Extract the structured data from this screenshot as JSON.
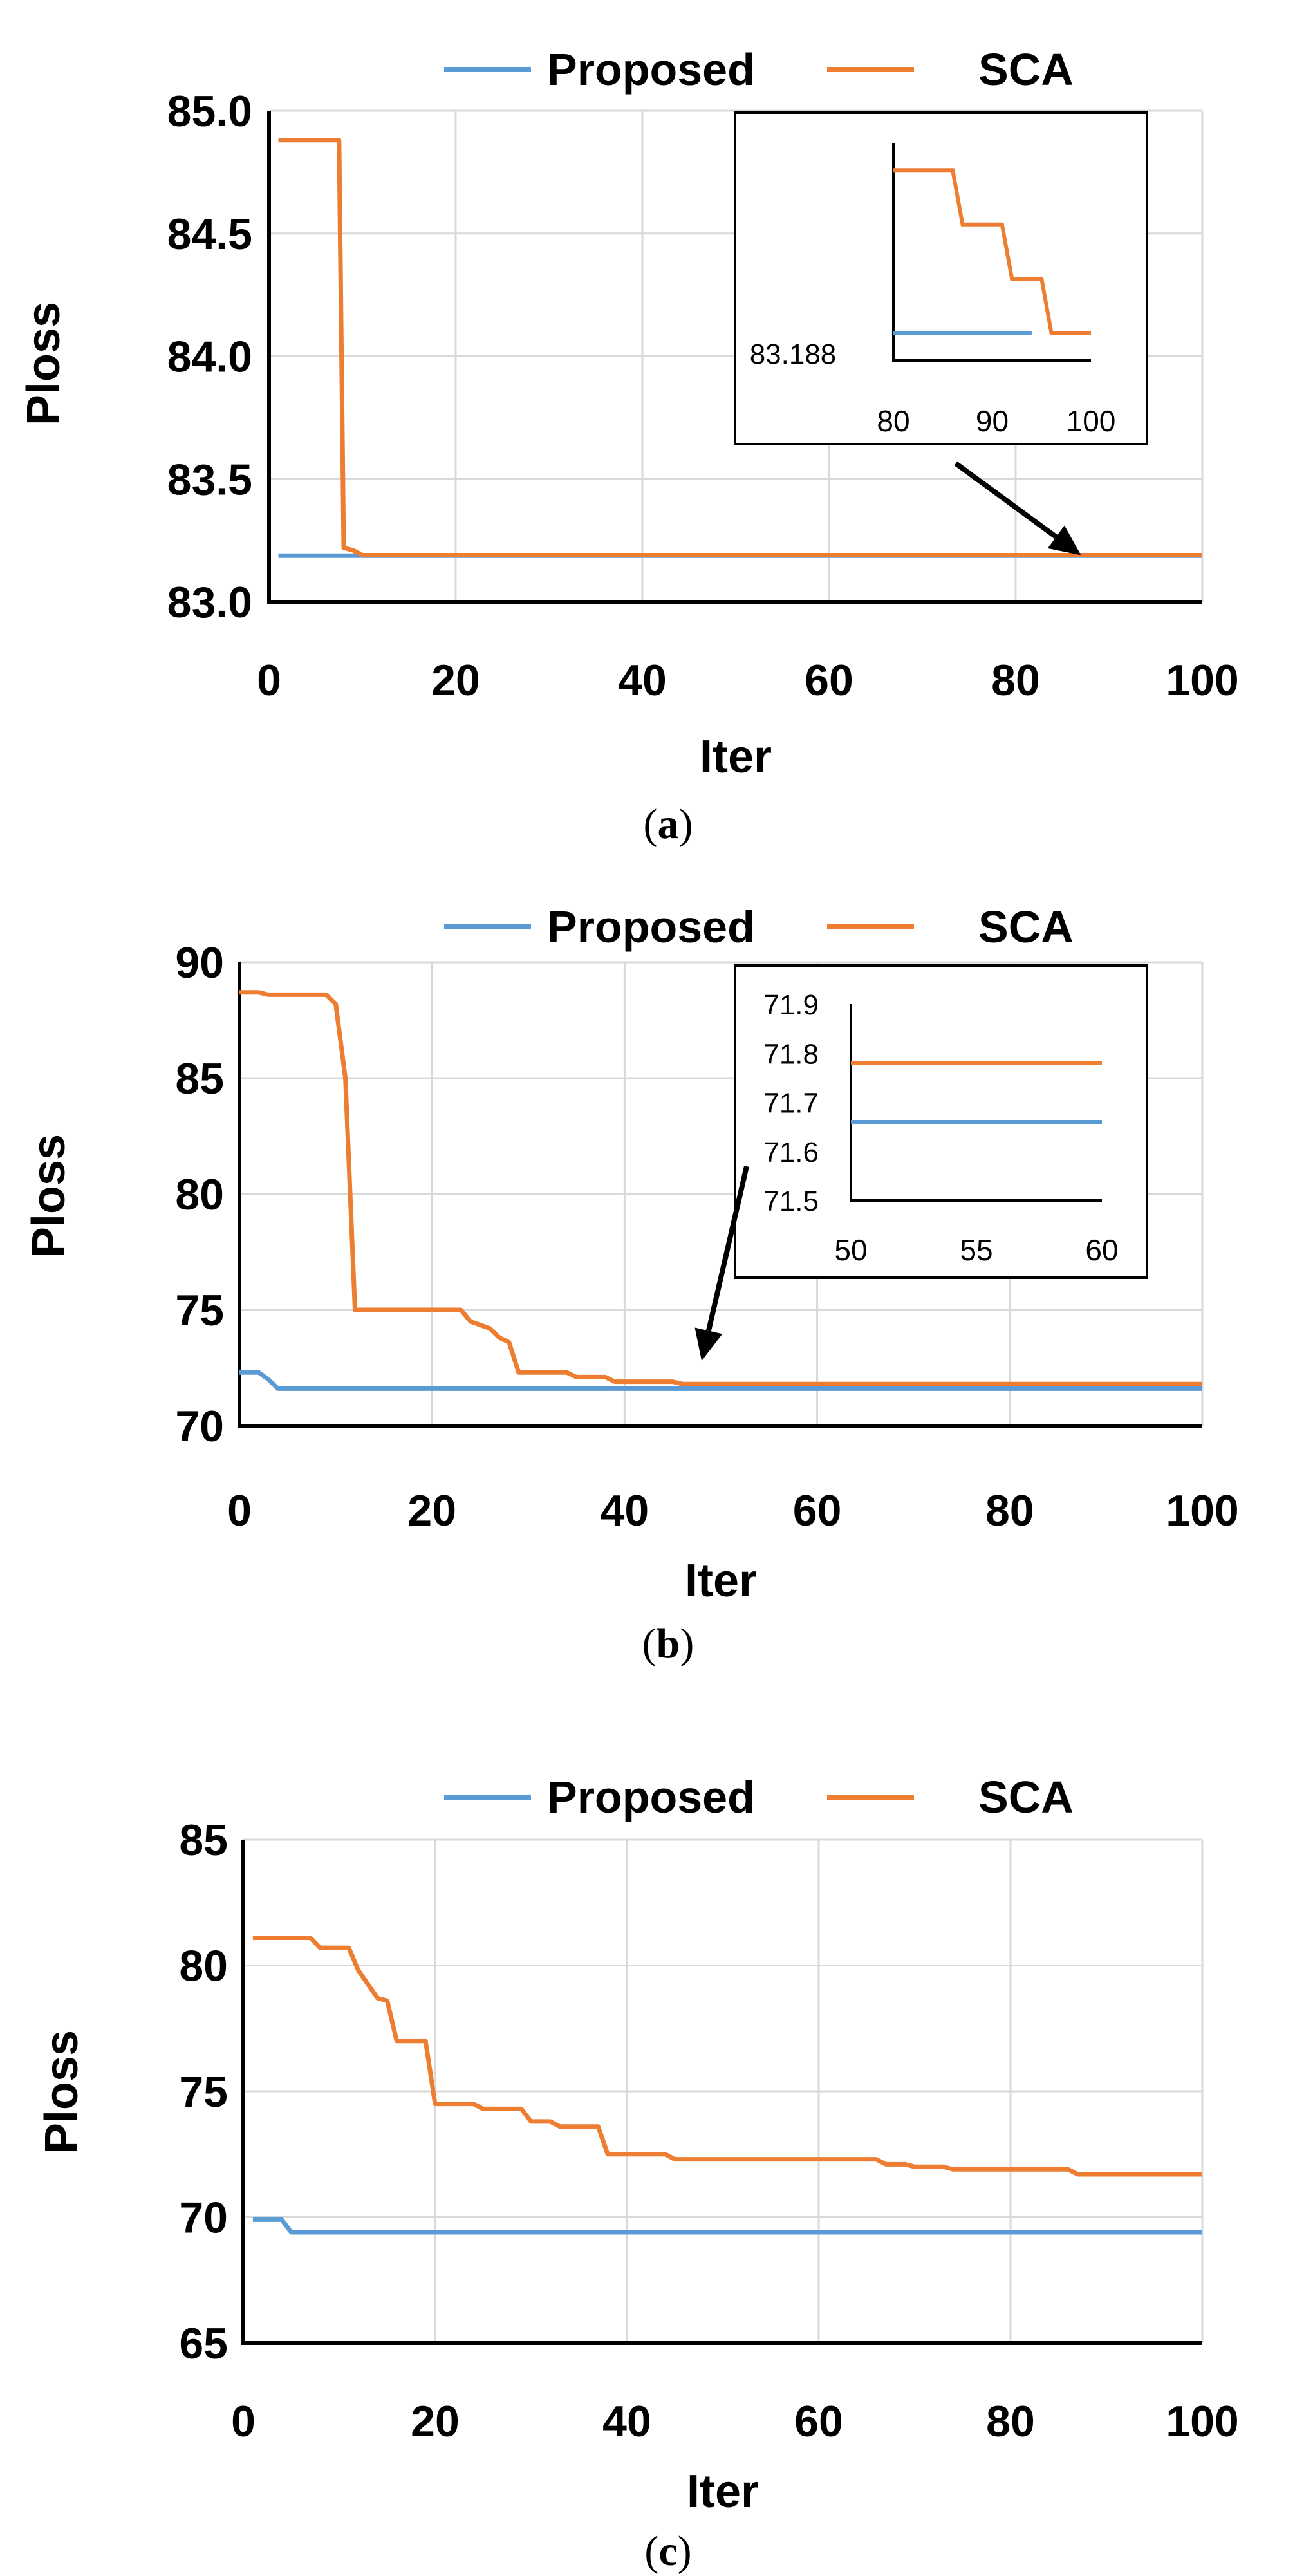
{
  "colors": {
    "proposed": "#5b9bd5",
    "sca": "#ed7d31",
    "grid": "#d9d9d9",
    "axis": "#000000"
  },
  "panels": [
    {
      "caption_letter": "a"
    },
    {
      "caption_letter": "b"
    },
    {
      "caption_letter": "c"
    }
  ],
  "chart_data": [
    {
      "type": "line",
      "title": "",
      "xlabel": "Iter",
      "ylabel": "Ploss",
      "xlim": [
        0,
        100
      ],
      "ylim": [
        83.0,
        85.0
      ],
      "xticks": [
        0,
        20,
        40,
        60,
        80,
        100
      ],
      "xtick_labels": [
        "0",
        "20",
        "40",
        "60",
        "80",
        "100"
      ],
      "yticks": [
        83.0,
        83.5,
        84.0,
        84.5,
        85.0
      ],
      "ytick_labels": [
        "83.0",
        "83.5",
        "84.0",
        "84.5",
        "85.0"
      ],
      "legend": {
        "position": "top",
        "entries": [
          "Proposed",
          "SCA"
        ]
      },
      "series": [
        {
          "name": "Proposed",
          "x": [
            1,
            100
          ],
          "y": [
            83.188,
            83.188
          ]
        },
        {
          "name": "SCA",
          "x": [
            1,
            7.5,
            8,
            9,
            10,
            100
          ],
          "y": [
            84.88,
            84.88,
            83.22,
            83.21,
            83.19,
            83.19
          ]
        }
      ],
      "inset": {
        "xlim": [
          80,
          100
        ],
        "xticks": [
          80,
          90,
          100
        ],
        "xtick_labels": [
          "80",
          "90",
          "100"
        ],
        "ytick_label": "83.188",
        "series": [
          {
            "name": "Proposed",
            "x": [
              80,
              94
            ],
            "y": [
              83.188,
              83.188
            ]
          },
          {
            "name": "SCA",
            "x": [
              80,
              86,
              87,
              91,
              92,
              95,
              96,
              100
            ],
            "y": [
              83.2,
              83.2,
              83.196,
              83.196,
              83.192,
              83.192,
              83.188,
              83.188
            ]
          }
        ],
        "arrow_target": {
          "x": 87,
          "y": 83.19
        }
      }
    },
    {
      "type": "line",
      "title": "",
      "xlabel": "Iter",
      "ylabel": "Ploss",
      "xlim": [
        0,
        100
      ],
      "ylim": [
        70,
        90
      ],
      "xticks": [
        0,
        20,
        40,
        60,
        80,
        100
      ],
      "xtick_labels": [
        "0",
        "20",
        "40",
        "60",
        "80",
        "100"
      ],
      "yticks": [
        70,
        75,
        80,
        85,
        90
      ],
      "ytick_labels": [
        "70",
        "75",
        "80",
        "85",
        "90"
      ],
      "legend": {
        "position": "top",
        "entries": [
          "Proposed",
          "SCA"
        ]
      },
      "series": [
        {
          "name": "Proposed",
          "x": [
            0,
            2,
            3,
            4,
            100
          ],
          "y": [
            72.3,
            72.3,
            72.0,
            71.6,
            71.6
          ]
        },
        {
          "name": "SCA",
          "x": [
            0,
            2,
            3,
            9,
            10,
            11,
            12,
            23,
            24,
            26,
            27,
            28,
            29,
            34,
            35,
            38,
            39,
            45,
            46,
            100
          ],
          "y": [
            88.7,
            88.7,
            88.6,
            88.6,
            88.2,
            85.0,
            75.0,
            75.0,
            74.5,
            74.2,
            73.8,
            73.6,
            72.3,
            72.3,
            72.1,
            72.1,
            71.9,
            71.9,
            71.8,
            71.8
          ]
        }
      ],
      "inset": {
        "xlim": [
          50,
          60
        ],
        "ylim": [
          71.5,
          71.9
        ],
        "xticks": [
          50,
          55,
          60
        ],
        "xtick_labels": [
          "50",
          "55",
          "60"
        ],
        "yticks": [
          71.5,
          71.6,
          71.7,
          71.8,
          71.9
        ],
        "ytick_labels": [
          "71.5",
          "71.6",
          "71.7",
          "71.8",
          "71.9"
        ],
        "series": [
          {
            "name": "Proposed",
            "x": [
              50,
              60
            ],
            "y": [
              71.66,
              71.66
            ]
          },
          {
            "name": "SCA",
            "x": [
              50,
              60
            ],
            "y": [
              71.78,
              71.78
            ]
          }
        ],
        "arrow_target": {
          "x": 48,
          "y": 72.8
        }
      }
    },
    {
      "type": "line",
      "title": "",
      "xlabel": "Iter",
      "ylabel": "Ploss",
      "xlim": [
        0,
        100
      ],
      "ylim": [
        65,
        85
      ],
      "xticks": [
        0,
        20,
        40,
        60,
        80,
        100
      ],
      "xtick_labels": [
        "0",
        "20",
        "40",
        "60",
        "80",
        "100"
      ],
      "yticks": [
        65,
        70,
        75,
        80,
        85
      ],
      "ytick_labels": [
        "65",
        "70",
        "75",
        "80",
        "85"
      ],
      "legend": {
        "position": "top",
        "entries": [
          "Proposed",
          "SCA"
        ]
      },
      "series": [
        {
          "name": "Proposed",
          "x": [
            1,
            4,
            5,
            100
          ],
          "y": [
            69.9,
            69.9,
            69.4,
            69.4
          ]
        },
        {
          "name": "SCA",
          "x": [
            1,
            7,
            8,
            11,
            12,
            14,
            15,
            16,
            17,
            19,
            20,
            24,
            25,
            29,
            30,
            32,
            33,
            37,
            38,
            44,
            45,
            66,
            67,
            69,
            70,
            73,
            74,
            86,
            87,
            100
          ],
          "y": [
            81.1,
            81.1,
            80.7,
            80.7,
            79.8,
            78.7,
            78.6,
            77.0,
            77.0,
            77.0,
            74.5,
            74.5,
            74.3,
            74.3,
            73.8,
            73.8,
            73.6,
            73.6,
            72.5,
            72.5,
            72.3,
            72.3,
            72.1,
            72.1,
            72.0,
            72.0,
            71.9,
            71.9,
            71.7,
            71.7
          ]
        }
      ]
    }
  ]
}
